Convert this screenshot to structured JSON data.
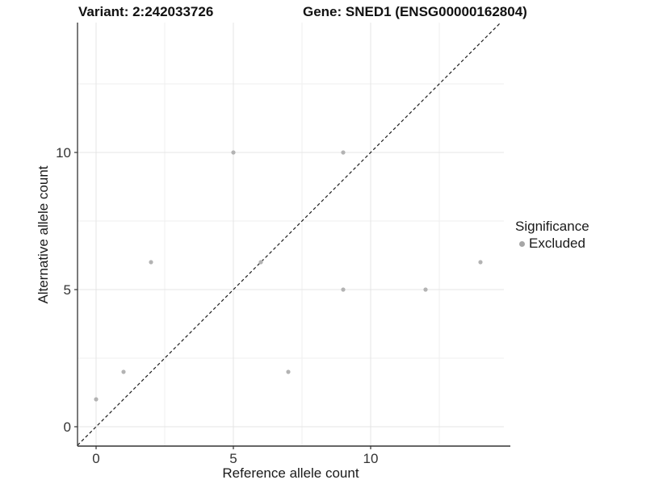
{
  "header": {
    "variant_title": "Variant: 2:242033726",
    "gene_title": "Gene: SNED1 (ENSG00000162804)"
  },
  "chart_data": {
    "type": "scatter",
    "xlabel": "Reference allele count",
    "ylabel": "Alternative allele count",
    "xlim": [
      -0.7,
      14.8
    ],
    "ylim": [
      -0.7,
      14.8
    ],
    "x_major_ticks": [
      0,
      5,
      10
    ],
    "y_major_ticks": [
      0,
      5,
      10
    ],
    "x_minor_gridlines": [
      2.5,
      7.5,
      12.5
    ],
    "y_minor_gridlines": [
      2.5,
      7.5,
      12.5
    ],
    "grid": true,
    "series": [
      {
        "name": "Excluded",
        "points": [
          [
            0,
            1
          ],
          [
            1,
            2
          ],
          [
            2,
            6
          ],
          [
            5,
            10
          ],
          [
            6,
            6
          ],
          [
            7,
            2
          ],
          [
            9,
            5
          ],
          [
            9,
            10
          ],
          [
            12,
            5
          ],
          [
            14,
            6
          ]
        ]
      }
    ],
    "identity_line": {
      "equation": "y = x",
      "style": "dashed"
    },
    "colors": {
      "point": "#b3b3b3",
      "legend_marker": "#a6a6a6",
      "identity_line": "#1c1c1c",
      "grid_major": "#e4e4e4",
      "grid_minor": "#efefef",
      "axis_line": "#333333",
      "tick_text": "#333333"
    }
  },
  "legend": {
    "title": "Significance",
    "items": [
      {
        "label": "Excluded",
        "color": "#a6a6a6"
      }
    ]
  }
}
